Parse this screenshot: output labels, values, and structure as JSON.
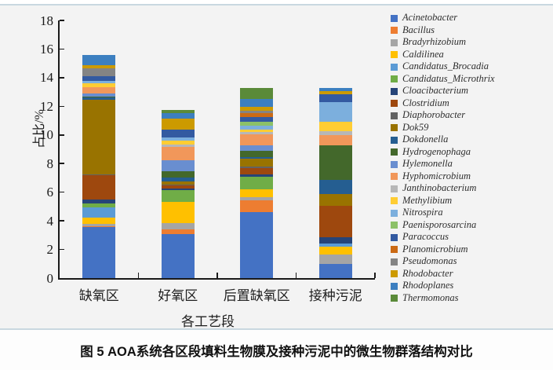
{
  "figure": {
    "caption": "图 5  AOA系统各区段填料生物膜及接种污泥中的微生物群落结构对比"
  },
  "chart_data": {
    "type": "bar",
    "stacked": true,
    "title": "",
    "xlabel": "各工艺段",
    "ylabel": "占比/%",
    "ylim": [
      0,
      18
    ],
    "ytick_step": 2,
    "grid": false,
    "legend_position": "right",
    "categories": [
      "缺氧区",
      "好氧区",
      "后置缺氧区",
      "接种污泥"
    ],
    "totals": [
      15.6,
      11.75,
      13.3,
      13.3
    ],
    "series": [
      {
        "name": "Acinetobacter",
        "color": "#4472C4",
        "values": [
          3.55,
          3.05,
          4.6,
          1.0
        ]
      },
      {
        "name": "Bacillus",
        "color": "#ED7D31",
        "values": [
          0.1,
          0.35,
          0.85,
          0.0
        ]
      },
      {
        "name": "Bradyrhizobium",
        "color": "#A5A5A5",
        "values": [
          0.15,
          0.45,
          0.2,
          0.65
        ]
      },
      {
        "name": "Caldilinea",
        "color": "#FFC000",
        "values": [
          0.45,
          1.5,
          0.55,
          0.55
        ]
      },
      {
        "name": "Candidatus_Brocadia",
        "color": "#5B9BD5",
        "values": [
          0.7,
          0.0,
          0.0,
          0.2
        ]
      },
      {
        "name": "Candidatus_Microthrix",
        "color": "#70AD47",
        "values": [
          0.25,
          0.8,
          0.9,
          0.0
        ]
      },
      {
        "name": "Cloacibacterium",
        "color": "#264478",
        "values": [
          0.3,
          0.1,
          0.15,
          0.45
        ]
      },
      {
        "name": "Clostridium",
        "color": "#9E480E",
        "values": [
          1.7,
          0.25,
          0.45,
          2.2
        ]
      },
      {
        "name": "Diaphorobacter",
        "color": "#636363",
        "values": [
          0.05,
          0.05,
          0.1,
          0.0
        ]
      },
      {
        "name": "Dok59",
        "color": "#997300",
        "values": [
          5.2,
          0.2,
          0.55,
          0.8
        ]
      },
      {
        "name": "Dokdonella",
        "color": "#255E91",
        "values": [
          0.15,
          0.25,
          0.1,
          1.0
        ]
      },
      {
        "name": "Hydrogenophaga",
        "color": "#43682B",
        "values": [
          0.1,
          0.45,
          0.45,
          2.4
        ]
      },
      {
        "name": "Hylemonella",
        "color": "#698ED0",
        "values": [
          0.2,
          0.8,
          0.4,
          0.0
        ]
      },
      {
        "name": "Hyphomicrobium",
        "color": "#F1975A",
        "values": [
          0.45,
          0.9,
          0.75,
          0.75
        ]
      },
      {
        "name": "Janthinobacterium",
        "color": "#B7B7B7",
        "values": [
          0.0,
          0.2,
          0.15,
          0.25
        ]
      },
      {
        "name": "Methylibium",
        "color": "#FFCD33",
        "values": [
          0.25,
          0.25,
          0.2,
          0.65
        ]
      },
      {
        "name": "Nitrospira",
        "color": "#7CAFDD",
        "values": [
          0.2,
          0.25,
          0.25,
          1.4
        ]
      },
      {
        "name": "Paenisporosarcina",
        "color": "#8CC168",
        "values": [
          0.0,
          0.0,
          0.25,
          0.0
        ]
      },
      {
        "name": "Paracoccus",
        "color": "#335AA1",
        "values": [
          0.3,
          0.55,
          0.35,
          0.55
        ]
      },
      {
        "name": "Planomicrobium",
        "color": "#CB6A15",
        "values": [
          0.0,
          0.0,
          0.25,
          0.0
        ]
      },
      {
        "name": "Pseudomonas",
        "color": "#848484",
        "values": [
          0.55,
          0.0,
          0.2,
          0.0
        ]
      },
      {
        "name": "Rhodobacter",
        "color": "#CC9A00",
        "values": [
          0.2,
          0.75,
          0.25,
          0.2
        ]
      },
      {
        "name": "Rhodoplanes",
        "color": "#3C7FC0",
        "values": [
          0.75,
          0.35,
          0.55,
          0.25
        ]
      },
      {
        "name": "Thermomonas",
        "color": "#5A8A39",
        "values": [
          0.0,
          0.25,
          0.8,
          0.0
        ]
      }
    ]
  }
}
